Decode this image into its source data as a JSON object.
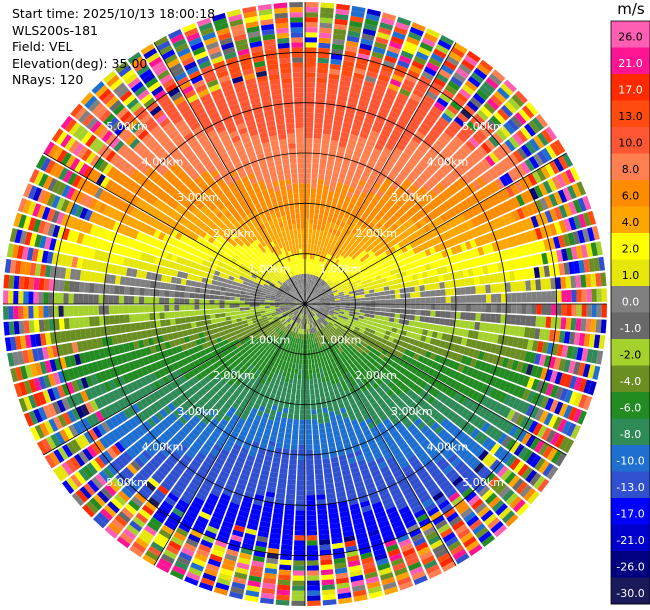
{
  "info": {
    "start_time": "Start time: 2025/10/13 18:00:18",
    "device": "WLS200s-181",
    "field": "Field: VEL",
    "elevation": "Elevation(deg): 35.00",
    "nrays": "NRays: 120"
  },
  "chart_data": {
    "type": "heatmap",
    "projection": "polar-ppi",
    "field": "VEL",
    "nrays": 120,
    "elevation_deg": 35.0,
    "max_range_km": 6.0,
    "range_rings_km": [
      1.0,
      2.0,
      3.0,
      4.0,
      5.0
    ],
    "range_labels": [
      "1.00km",
      "2.00km",
      "3.00km",
      "4.00km",
      "5.00km"
    ],
    "colorbar": {
      "unit": "m/s",
      "ticks": [
        "26.0",
        "21.0",
        "17.0",
        "13.0",
        "10.0",
        "8.0",
        "6.0",
        "4.0",
        "2.0",
        "1.0",
        "0.0",
        "-1.0",
        "-2.0",
        "-4.0",
        "-6.0",
        "-8.0",
        "-10.0",
        "-13.0",
        "-17.0",
        "-21.0",
        "-26.0",
        "-30.0"
      ],
      "colors": [
        "#ff5fb3",
        "#ff1493",
        "#ff2a00",
        "#ff4a10",
        "#ff5733",
        "#ff7f50",
        "#ff8c00",
        "#ffa500",
        "#ffff00",
        "#e6e60a",
        "#808080",
        "#696969",
        "#a4d12c",
        "#6b8e23",
        "#228b22",
        "#2e8b57",
        "#1e6fd0",
        "#3050d0",
        "#0000ff",
        "#0000cd",
        "#000080",
        "#1a1a5a"
      ]
    },
    "grid": true
  }
}
